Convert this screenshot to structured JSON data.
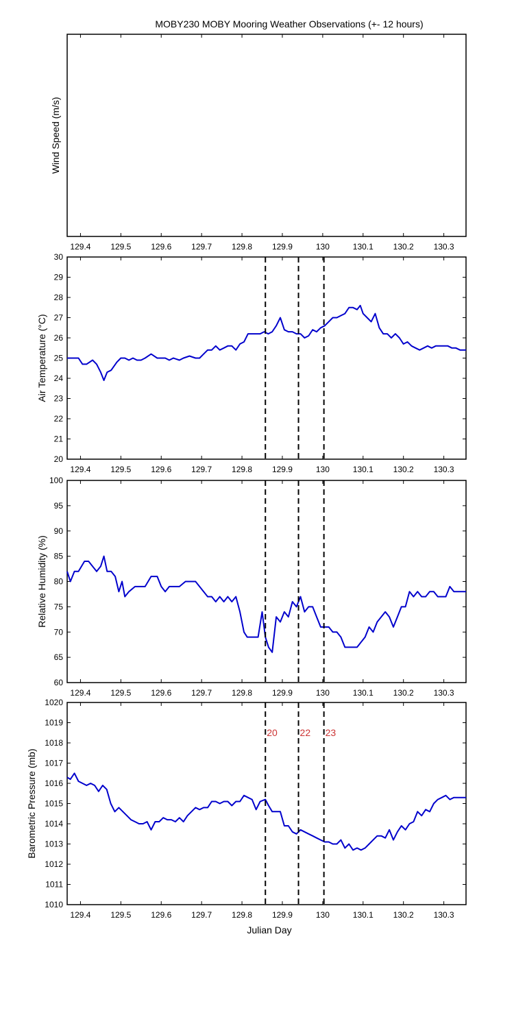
{
  "figure": {
    "title": "MOBY230 MOBY Mooring Weather Observations (+- 12 hours)",
    "xlabel": "Julian Day"
  },
  "colors": {
    "line": "#0000cc",
    "marker": "#000000",
    "marker_label": "#cc3333",
    "axes": "#000000",
    "background": "#ffffff"
  },
  "chart_data": [
    {
      "type": "line",
      "ylabel": "Wind Speed (m/s)",
      "xlim": [
        129.367,
        130.355
      ],
      "ylim": null,
      "yticks": [],
      "xticks": [
        129.4,
        129.5,
        129.6,
        129.7,
        129.8,
        129.9,
        130,
        130.1,
        130.2,
        130.3
      ],
      "xtick_labels": [
        "129.4",
        "129.5",
        "129.6",
        "129.7",
        "129.8",
        "129.9",
        "130",
        "130.1",
        "130.2",
        "130.3"
      ],
      "x": [],
      "y": [],
      "markers": [],
      "marker_labels": []
    },
    {
      "type": "line",
      "ylabel": "Air Temperature (°C)",
      "xlim": [
        129.367,
        130.355
      ],
      "ylim": [
        20,
        30
      ],
      "yticks": [
        20,
        21,
        22,
        23,
        24,
        25,
        26,
        27,
        28,
        29,
        30
      ],
      "xticks": [
        129.4,
        129.5,
        129.6,
        129.7,
        129.8,
        129.9,
        130,
        130.1,
        130.2,
        130.3
      ],
      "xtick_labels": [
        "129.4",
        "129.5",
        "129.6",
        "129.7",
        "129.8",
        "129.9",
        "130",
        "130.1",
        "130.2",
        "130.3"
      ],
      "x": [
        129.367,
        129.38,
        129.395,
        129.405,
        129.415,
        129.43,
        129.44,
        129.45,
        129.458,
        129.466,
        129.476,
        129.49,
        129.5,
        129.51,
        129.52,
        129.53,
        129.54,
        129.55,
        129.56,
        129.575,
        129.59,
        129.6,
        129.61,
        129.62,
        129.63,
        129.645,
        129.655,
        129.67,
        129.685,
        129.695,
        129.705,
        129.715,
        129.725,
        129.735,
        129.745,
        129.755,
        129.765,
        129.775,
        129.785,
        129.795,
        129.805,
        129.815,
        129.825,
        129.835,
        129.845,
        129.855,
        129.865,
        129.875,
        129.885,
        129.895,
        129.905,
        129.915,
        129.925,
        129.935,
        129.945,
        129.955,
        129.965,
        129.975,
        129.985,
        129.995,
        130.005,
        130.015,
        130.025,
        130.035,
        130.045,
        130.055,
        130.065,
        130.075,
        130.085,
        130.093,
        130.1,
        130.11,
        130.12,
        130.13,
        130.14,
        130.15,
        130.16,
        130.17,
        130.18,
        130.19,
        130.2,
        130.21,
        130.22,
        130.23,
        130.24,
        130.25,
        130.26,
        130.27,
        130.28,
        130.29,
        130.3,
        130.31,
        130.32,
        130.33,
        130.34,
        130.355
      ],
      "y": [
        25,
        25,
        25,
        24.7,
        24.7,
        24.9,
        24.7,
        24.3,
        23.9,
        24.3,
        24.4,
        24.8,
        25,
        25,
        24.9,
        25,
        24.9,
        24.9,
        25,
        25.2,
        25,
        25,
        25,
        24.9,
        25,
        24.9,
        25,
        25.1,
        25,
        25,
        25.2,
        25.4,
        25.4,
        25.6,
        25.4,
        25.5,
        25.6,
        25.6,
        25.4,
        25.7,
        25.8,
        26.2,
        26.2,
        26.2,
        26.2,
        26.3,
        26.2,
        26.3,
        26.6,
        27,
        26.4,
        26.3,
        26.3,
        26.2,
        26.2,
        26,
        26.1,
        26.4,
        26.3,
        26.5,
        26.6,
        26.8,
        27,
        27,
        27.1,
        27.2,
        27.5,
        27.5,
        27.4,
        27.6,
        27.2,
        27,
        26.8,
        27.2,
        26.5,
        26.2,
        26.2,
        26,
        26.2,
        26,
        25.7,
        25.8,
        25.6,
        25.5,
        25.4,
        25.5,
        25.6,
        25.5,
        25.6,
        25.6,
        25.6,
        25.6,
        25.5,
        25.5,
        25.4,
        25.4
      ],
      "markers": [
        129.858,
        129.94,
        130.003
      ],
      "marker_labels": []
    },
    {
      "type": "line",
      "ylabel": "Relative Humidity (%)",
      "xlim": [
        129.367,
        130.355
      ],
      "ylim": [
        60,
        100
      ],
      "yticks": [
        60,
        65,
        70,
        75,
        80,
        85,
        90,
        95,
        100
      ],
      "xticks": [
        129.4,
        129.5,
        129.6,
        129.7,
        129.8,
        129.9,
        130,
        130.1,
        130.2,
        130.3
      ],
      "xtick_labels": [
        "129.4",
        "129.5",
        "129.6",
        "129.7",
        "129.8",
        "129.9",
        "130",
        "130.1",
        "130.2",
        "130.3"
      ],
      "x": [
        129.367,
        129.375,
        129.385,
        129.395,
        129.41,
        129.42,
        129.43,
        129.44,
        129.45,
        129.458,
        129.466,
        129.476,
        129.486,
        129.495,
        129.503,
        129.51,
        129.52,
        129.535,
        129.55,
        129.56,
        129.575,
        129.59,
        129.6,
        129.61,
        129.62,
        129.63,
        129.645,
        129.66,
        129.675,
        129.685,
        129.695,
        129.705,
        129.715,
        129.725,
        129.735,
        129.745,
        129.755,
        129.765,
        129.775,
        129.785,
        129.795,
        129.805,
        129.813,
        129.82,
        129.83,
        129.84,
        129.85,
        129.858,
        129.866,
        129.875,
        129.885,
        129.895,
        129.905,
        129.915,
        129.925,
        129.935,
        129.945,
        129.955,
        129.965,
        129.975,
        129.985,
        129.995,
        130.005,
        130.015,
        130.025,
        130.035,
        130.045,
        130.055,
        130.065,
        130.075,
        130.085,
        130.095,
        130.105,
        130.115,
        130.125,
        130.135,
        130.145,
        130.155,
        130.165,
        130.175,
        130.185,
        130.195,
        130.205,
        130.215,
        130.225,
        130.235,
        130.245,
        130.255,
        130.265,
        130.275,
        130.285,
        130.295,
        130.305,
        130.315,
        130.325,
        130.335,
        130.345,
        130.355
      ],
      "y": [
        82,
        80,
        82,
        82,
        84,
        84,
        83,
        82,
        83,
        85,
        82,
        82,
        81,
        78,
        80,
        77,
        78,
        79,
        79,
        79,
        81,
        81,
        79,
        78,
        79,
        79,
        79,
        80,
        80,
        80,
        79,
        78,
        77,
        77,
        76,
        77,
        76,
        77,
        76,
        77,
        74,
        70,
        69,
        69,
        69,
        69,
        74,
        69,
        67,
        66,
        73,
        72,
        74,
        73,
        76,
        75,
        77,
        74,
        75,
        75,
        73,
        71,
        71,
        71,
        70,
        70,
        69,
        67,
        67,
        67,
        67,
        68,
        69,
        71,
        70,
        72,
        73,
        74,
        73,
        71,
        73,
        75,
        75,
        78,
        77,
        78,
        77,
        77,
        78,
        78,
        77,
        77,
        77,
        79,
        78,
        78,
        78,
        78
      ],
      "markers": [
        129.858,
        129.94,
        130.003
      ],
      "marker_labels": []
    },
    {
      "type": "line",
      "ylabel": "Barometric Pressure (mb)",
      "xlim": [
        129.367,
        130.355
      ],
      "ylim": [
        1010,
        1020
      ],
      "yticks": [
        1010,
        1011,
        1012,
        1013,
        1014,
        1015,
        1016,
        1017,
        1018,
        1019,
        1020
      ],
      "xticks": [
        129.4,
        129.5,
        129.6,
        129.7,
        129.8,
        129.9,
        130,
        130.1,
        130.2,
        130.3
      ],
      "xtick_labels": [
        "129.4",
        "129.5",
        "129.6",
        "129.7",
        "129.8",
        "129.9",
        "130",
        "130.1",
        "130.2",
        "130.3"
      ],
      "x": [
        129.367,
        129.375,
        129.385,
        129.395,
        129.405,
        129.415,
        129.425,
        129.435,
        129.445,
        129.455,
        129.465,
        129.475,
        129.485,
        129.495,
        129.505,
        129.515,
        129.525,
        129.535,
        129.545,
        129.555,
        129.565,
        129.575,
        129.585,
        129.595,
        129.605,
        129.615,
        129.625,
        129.635,
        129.645,
        129.655,
        129.665,
        129.675,
        129.685,
        129.695,
        129.705,
        129.715,
        129.725,
        129.735,
        129.745,
        129.755,
        129.765,
        129.775,
        129.785,
        129.795,
        129.805,
        129.815,
        129.825,
        129.835,
        129.845,
        129.858,
        129.866,
        129.875,
        129.885,
        129.895,
        129.905,
        129.915,
        129.925,
        129.935,
        129.945,
        129.955,
        129.965,
        129.975,
        129.985,
        129.995,
        130.005,
        130.015,
        130.025,
        130.035,
        130.045,
        130.055,
        130.065,
        130.075,
        130.085,
        130.095,
        130.105,
        130.115,
        130.125,
        130.135,
        130.145,
        130.155,
        130.165,
        130.175,
        130.185,
        130.195,
        130.205,
        130.215,
        130.225,
        130.235,
        130.245,
        130.255,
        130.265,
        130.275,
        130.285,
        130.295,
        130.305,
        130.315,
        130.325,
        130.335,
        130.345,
        130.355
      ],
      "y": [
        1016.3,
        1016.2,
        1016.5,
        1016.1,
        1016,
        1015.9,
        1016,
        1015.9,
        1015.6,
        1015.9,
        1015.7,
        1015,
        1014.6,
        1014.8,
        1014.6,
        1014.4,
        1014.2,
        1014.1,
        1014,
        1014,
        1014.1,
        1013.7,
        1014.1,
        1014.1,
        1014.3,
        1014.2,
        1014.2,
        1014.1,
        1014.3,
        1014.1,
        1014.4,
        1014.6,
        1014.8,
        1014.7,
        1014.8,
        1014.8,
        1015.1,
        1015.1,
        1015,
        1015.1,
        1015.1,
        1014.9,
        1015.1,
        1015.1,
        1015.4,
        1015.3,
        1015.2,
        1014.7,
        1015.1,
        1015.2,
        1014.9,
        1014.6,
        1014.6,
        1014.6,
        1013.9,
        1013.9,
        1013.6,
        1013.5,
        1013.7,
        1013.6,
        1013.5,
        1013.4,
        1013.3,
        1013.2,
        1013.1,
        1013.1,
        1013,
        1013,
        1013.2,
        1012.8,
        1013,
        1012.7,
        1012.8,
        1012.7,
        1012.8,
        1013,
        1013.2,
        1013.4,
        1013.4,
        1013.3,
        1013.7,
        1013.2,
        1013.6,
        1013.9,
        1013.7,
        1014,
        1014.1,
        1014.6,
        1014.4,
        1014.7,
        1014.6,
        1015,
        1015.2,
        1015.3,
        1015.4,
        1015.2,
        1015.3,
        1015.3,
        1015.3,
        1015.3
      ],
      "markers": [
        129.858,
        129.94,
        130.003
      ],
      "marker_labels": [
        "20",
        "22",
        "23"
      ]
    }
  ]
}
